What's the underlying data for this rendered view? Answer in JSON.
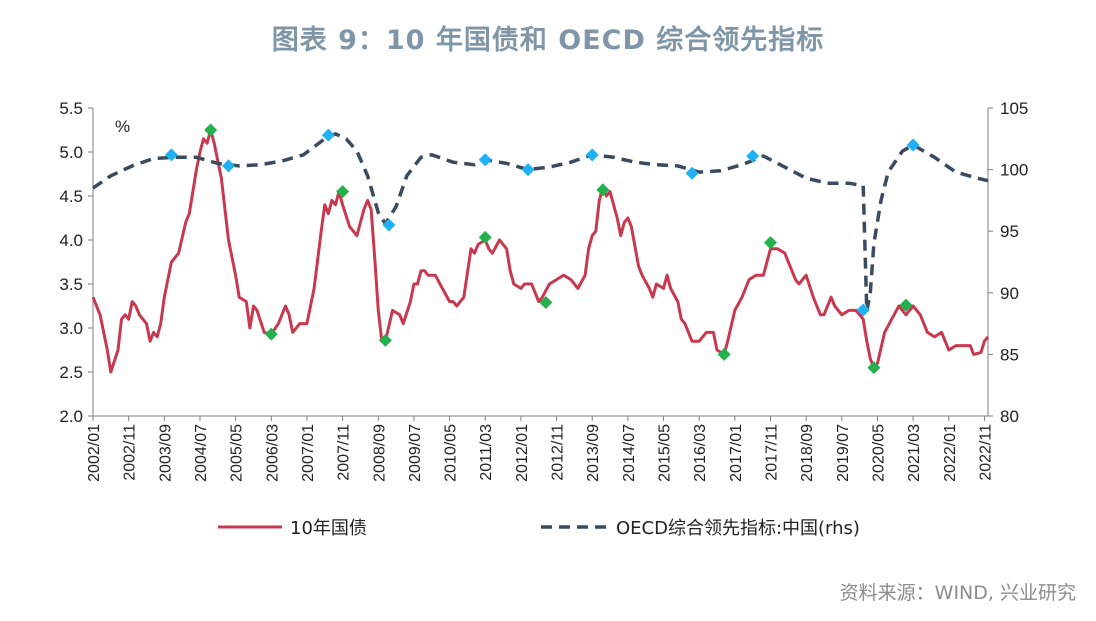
{
  "title": "图表 9：10 年国债和 OECD 综合领先指标",
  "source": "资料来源：WIND, 兴业研究",
  "chart_data": {
    "type": "line",
    "unit_left": "%",
    "ylim_left": [
      2.0,
      5.5
    ],
    "yticks_left": [
      "2.0",
      "2.5",
      "3.0",
      "3.5",
      "4.0",
      "4.5",
      "5.0",
      "5.5"
    ],
    "ylim_right": [
      80,
      105
    ],
    "yticks_right": [
      "80",
      "85",
      "90",
      "95",
      "100",
      "105"
    ],
    "xlim": [
      "2002/01",
      "2022/12"
    ],
    "xtick_labels": [
      "2002/01",
      "2002/11",
      "2003/09",
      "2004/07",
      "2005/05",
      "2006/03",
      "2007/01",
      "2007/11",
      "2008/09",
      "2009/07",
      "2010/05",
      "2011/03",
      "2012/01",
      "2012/11",
      "2013/09",
      "2014/07",
      "2015/05",
      "2016/03",
      "2017/01",
      "2017/11",
      "2018/09",
      "2019/07",
      "2020/05",
      "2021/03",
      "2022/01",
      "2022/11"
    ],
    "series": [
      {
        "name": "10年国债",
        "axis": "left",
        "color": "#c8394f",
        "style": "solid",
        "points": [
          [
            "2002/01",
            3.35
          ],
          [
            "2002/03",
            3.15
          ],
          [
            "2002/05",
            2.75
          ],
          [
            "2002/06",
            2.5
          ],
          [
            "2002/08",
            2.75
          ],
          [
            "2002/09",
            3.1
          ],
          [
            "2002/10",
            3.15
          ],
          [
            "2002/11",
            3.1
          ],
          [
            "2002/12",
            3.3
          ],
          [
            "2003/01",
            3.25
          ],
          [
            "2003/02",
            3.15
          ],
          [
            "2003/04",
            3.05
          ],
          [
            "2003/05",
            2.85
          ],
          [
            "2003/06",
            2.95
          ],
          [
            "2003/07",
            2.9
          ],
          [
            "2003/08",
            3.05
          ],
          [
            "2003/09",
            3.35
          ],
          [
            "2003/11",
            3.75
          ],
          [
            "2004/01",
            3.85
          ],
          [
            "2004/03",
            4.2
          ],
          [
            "2004/04",
            4.3
          ],
          [
            "2004/06",
            4.8
          ],
          [
            "2004/07",
            5.0
          ],
          [
            "2004/08",
            5.15
          ],
          [
            "2004/09",
            5.1
          ],
          [
            "2004/10",
            5.25
          ],
          [
            "2004/11",
            5.1
          ],
          [
            "2005/01",
            4.7
          ],
          [
            "2005/03",
            4.0
          ],
          [
            "2005/05",
            3.6
          ],
          [
            "2005/06",
            3.35
          ],
          [
            "2005/08",
            3.3
          ],
          [
            "2005/09",
            3.0
          ],
          [
            "2005/10",
            3.25
          ],
          [
            "2005/11",
            3.2
          ],
          [
            "2006/01",
            2.95
          ],
          [
            "2006/03",
            2.93
          ],
          [
            "2006/05",
            3.05
          ],
          [
            "2006/07",
            3.25
          ],
          [
            "2006/08",
            3.15
          ],
          [
            "2006/09",
            2.95
          ],
          [
            "2006/11",
            3.05
          ],
          [
            "2007/01",
            3.05
          ],
          [
            "2007/03",
            3.45
          ],
          [
            "2007/05",
            4.1
          ],
          [
            "2007/06",
            4.4
          ],
          [
            "2007/07",
            4.3
          ],
          [
            "2007/08",
            4.45
          ],
          [
            "2007/09",
            4.4
          ],
          [
            "2007/10",
            4.55
          ],
          [
            "2007/11",
            4.4
          ],
          [
            "2008/01",
            4.15
          ],
          [
            "2008/03",
            4.05
          ],
          [
            "2008/05",
            4.35
          ],
          [
            "2008/06",
            4.45
          ],
          [
            "2008/07",
            4.35
          ],
          [
            "2008/08",
            3.8
          ],
          [
            "2008/09",
            3.2
          ],
          [
            "2008/10",
            2.85
          ],
          [
            "2008/11",
            2.85
          ],
          [
            "2009/01",
            3.2
          ],
          [
            "2009/03",
            3.15
          ],
          [
            "2009/04",
            3.05
          ],
          [
            "2009/06",
            3.3
          ],
          [
            "2009/07",
            3.5
          ],
          [
            "2009/08",
            3.5
          ],
          [
            "2009/09",
            3.65
          ],
          [
            "2009/10",
            3.65
          ],
          [
            "2009/11",
            3.6
          ],
          [
            "2010/01",
            3.6
          ],
          [
            "2010/03",
            3.45
          ],
          [
            "2010/05",
            3.3
          ],
          [
            "2010/06",
            3.3
          ],
          [
            "2010/07",
            3.25
          ],
          [
            "2010/09",
            3.35
          ],
          [
            "2010/11",
            3.9
          ],
          [
            "2010/12",
            3.85
          ],
          [
            "2011/01",
            3.95
          ],
          [
            "2011/03",
            4.0
          ],
          [
            "2011/04",
            3.9
          ],
          [
            "2011/05",
            3.85
          ],
          [
            "2011/07",
            4.0
          ],
          [
            "2011/09",
            3.9
          ],
          [
            "2011/10",
            3.65
          ],
          [
            "2011/11",
            3.5
          ],
          [
            "2012/01",
            3.45
          ],
          [
            "2012/02",
            3.5
          ],
          [
            "2012/04",
            3.5
          ],
          [
            "2012/06",
            3.3
          ],
          [
            "2012/07",
            3.35
          ],
          [
            "2012/09",
            3.5
          ],
          [
            "2012/11",
            3.55
          ],
          [
            "2013/01",
            3.6
          ],
          [
            "2013/03",
            3.55
          ],
          [
            "2013/05",
            3.45
          ],
          [
            "2013/07",
            3.6
          ],
          [
            "2013/08",
            3.9
          ],
          [
            "2013/09",
            4.05
          ],
          [
            "2013/10",
            4.1
          ],
          [
            "2013/11",
            4.45
          ],
          [
            "2013/12",
            4.6
          ],
          [
            "2014/01",
            4.5
          ],
          [
            "2014/02",
            4.55
          ],
          [
            "2014/04",
            4.25
          ],
          [
            "2014/05",
            4.05
          ],
          [
            "2014/06",
            4.2
          ],
          [
            "2014/07",
            4.25
          ],
          [
            "2014/08",
            4.15
          ],
          [
            "2014/10",
            3.7
          ],
          [
            "2014/11",
            3.6
          ],
          [
            "2015/01",
            3.45
          ],
          [
            "2015/02",
            3.35
          ],
          [
            "2015/03",
            3.5
          ],
          [
            "2015/05",
            3.45
          ],
          [
            "2015/06",
            3.6
          ],
          [
            "2015/07",
            3.45
          ],
          [
            "2015/09",
            3.3
          ],
          [
            "2015/10",
            3.1
          ],
          [
            "2015/11",
            3.05
          ],
          [
            "2016/01",
            2.85
          ],
          [
            "2016/03",
            2.85
          ],
          [
            "2016/05",
            2.95
          ],
          [
            "2016/07",
            2.95
          ],
          [
            "2016/08",
            2.75
          ],
          [
            "2016/10",
            2.7
          ],
          [
            "2016/11",
            2.85
          ],
          [
            "2017/01",
            3.2
          ],
          [
            "2017/03",
            3.35
          ],
          [
            "2017/05",
            3.55
          ],
          [
            "2017/07",
            3.6
          ],
          [
            "2017/09",
            3.6
          ],
          [
            "2017/11",
            3.9
          ],
          [
            "2018/01",
            3.9
          ],
          [
            "2018/03",
            3.85
          ],
          [
            "2018/05",
            3.65
          ],
          [
            "2018/06",
            3.55
          ],
          [
            "2018/07",
            3.5
          ],
          [
            "2018/09",
            3.6
          ],
          [
            "2018/11",
            3.35
          ],
          [
            "2019/01",
            3.15
          ],
          [
            "2019/02",
            3.15
          ],
          [
            "2019/04",
            3.35
          ],
          [
            "2019/05",
            3.25
          ],
          [
            "2019/07",
            3.15
          ],
          [
            "2019/09",
            3.2
          ],
          [
            "2019/11",
            3.2
          ],
          [
            "2020/01",
            3.1
          ],
          [
            "2020/02",
            2.85
          ],
          [
            "2020/03",
            2.65
          ],
          [
            "2020/04",
            2.55
          ],
          [
            "2020/05",
            2.6
          ],
          [
            "2020/07",
            2.95
          ],
          [
            "2020/09",
            3.1
          ],
          [
            "2020/11",
            3.25
          ],
          [
            "2021/01",
            3.15
          ],
          [
            "2021/03",
            3.25
          ],
          [
            "2021/05",
            3.15
          ],
          [
            "2021/07",
            2.95
          ],
          [
            "2021/09",
            2.9
          ],
          [
            "2021/11",
            2.95
          ],
          [
            "2022/01",
            2.75
          ],
          [
            "2022/03",
            2.8
          ],
          [
            "2022/05",
            2.8
          ],
          [
            "2022/07",
            2.8
          ],
          [
            "2022/08",
            2.7
          ],
          [
            "2022/10",
            2.72
          ],
          [
            "2022/11",
            2.85
          ],
          [
            "2022/12",
            2.9
          ]
        ]
      },
      {
        "name": "OECD综合领先指标:中国(rhs)",
        "axis": "right",
        "color": "#3b4a5e",
        "style": "dashed",
        "points": [
          [
            "2002/01",
            98.5
          ],
          [
            "2002/06",
            99.5
          ],
          [
            "2002/12",
            100.3
          ],
          [
            "2003/06",
            100.9
          ],
          [
            "2003/12",
            101.0
          ],
          [
            "2004/06",
            101.0
          ],
          [
            "2004/12",
            100.5
          ],
          [
            "2005/06",
            100.3
          ],
          [
            "2005/12",
            100.4
          ],
          [
            "2006/06",
            100.7
          ],
          [
            "2006/12",
            101.2
          ],
          [
            "2007/06",
            102.5
          ],
          [
            "2007/09",
            102.9
          ],
          [
            "2007/12",
            102.5
          ],
          [
            "2008/03",
            101.5
          ],
          [
            "2008/06",
            99.5
          ],
          [
            "2008/09",
            96.5
          ],
          [
            "2008/11",
            95.6
          ],
          [
            "2009/02",
            97.0
          ],
          [
            "2009/05",
            99.5
          ],
          [
            "2009/09",
            101.0
          ],
          [
            "2009/12",
            101.2
          ],
          [
            "2010/06",
            100.6
          ],
          [
            "2010/12",
            100.4
          ],
          [
            "2011/03",
            100.8
          ],
          [
            "2011/09",
            100.5
          ],
          [
            "2012/03",
            100.0
          ],
          [
            "2012/09",
            100.2
          ],
          [
            "2013/03",
            100.6
          ],
          [
            "2013/09",
            101.2
          ],
          [
            "2014/03",
            101.0
          ],
          [
            "2014/09",
            100.6
          ],
          [
            "2015/03",
            100.4
          ],
          [
            "2015/09",
            100.3
          ],
          [
            "2016/03",
            99.8
          ],
          [
            "2016/09",
            99.9
          ],
          [
            "2017/03",
            100.4
          ],
          [
            "2017/09",
            101.1
          ],
          [
            "2018/03",
            100.2
          ],
          [
            "2018/09",
            99.3
          ],
          [
            "2019/03",
            98.9
          ],
          [
            "2019/09",
            98.9
          ],
          [
            "2020/01",
            98.7
          ],
          [
            "2020/02",
            88.5
          ],
          [
            "2020/03",
            90.0
          ],
          [
            "2020/04",
            94.0
          ],
          [
            "2020/06",
            97.5
          ],
          [
            "2020/08",
            99.8
          ],
          [
            "2020/12",
            101.5
          ],
          [
            "2021/03",
            102.0
          ],
          [
            "2021/09",
            101.0
          ],
          [
            "2022/03",
            99.8
          ],
          [
            "2022/09",
            99.3
          ],
          [
            "2022/12",
            99.1
          ]
        ]
      }
    ],
    "markers": {
      "red_series_green_diamond": {
        "color": "#22b14c",
        "points": [
          [
            "2004/10",
            5.25
          ],
          [
            "2006/03",
            2.93
          ],
          [
            "2007/11",
            4.55
          ],
          [
            "2008/11",
            2.86
          ],
          [
            "2011/03",
            4.03
          ],
          [
            "2012/08",
            3.29
          ],
          [
            "2013/12",
            4.57
          ],
          [
            "2016/10",
            2.7
          ],
          [
            "2017/11",
            3.97
          ],
          [
            "2020/04",
            2.55
          ],
          [
            "2021/01",
            3.26
          ]
        ]
      },
      "dark_series_blue_diamond": {
        "color": "#1fb1f5",
        "points": [
          [
            "2003/11",
            101.2
          ],
          [
            "2005/03",
            100.3
          ],
          [
            "2007/07",
            102.8
          ],
          [
            "2008/12",
            95.5
          ],
          [
            "2011/03",
            100.8
          ],
          [
            "2012/03",
            100.0
          ],
          [
            "2013/09",
            101.2
          ],
          [
            "2016/01",
            99.7
          ],
          [
            "2017/06",
            101.1
          ],
          [
            "2020/01",
            88.6
          ],
          [
            "2021/03",
            102.0
          ]
        ]
      }
    }
  }
}
